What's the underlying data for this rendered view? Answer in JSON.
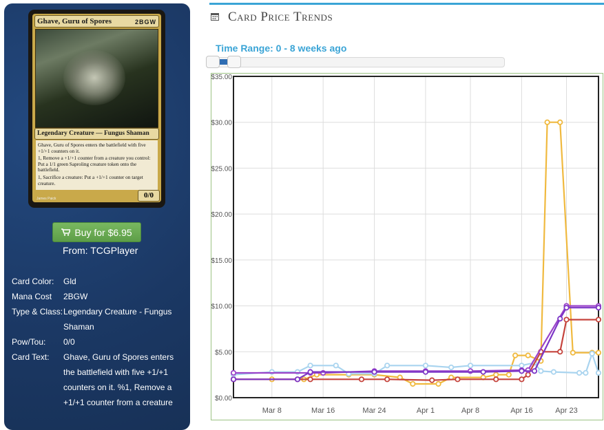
{
  "card": {
    "name": "Ghave, Guru of Spores",
    "cost": "2BGW",
    "type_line": "Legendary Creature — Fungus Shaman",
    "text_1": "Ghave, Guru of Spores enters the battlefield with five +1/+1 counters on it.",
    "text_2": "1, Remove a +1/+1 counter from a creature you control: Put a 1/1 green Saproling creature token onto the battlefield.",
    "text_3": "1, Sacrifice a creature: Put a +1/+1 counter on target creature.",
    "pt": "0/0",
    "artist": "James Paick"
  },
  "buy": {
    "label": "Buy for $6.95",
    "from": "From: TCGPlayer"
  },
  "attributes": [
    {
      "key": "Card Color:",
      "value": "Gld"
    },
    {
      "key": "Mana Cost",
      "value": "2BGW"
    },
    {
      "key": "Type & Class:",
      "value": "Legendary Creature - Fungus Shaman"
    },
    {
      "key": "Pow/Tou:",
      "value": "0/0"
    },
    {
      "key": "Card Text:",
      "value": "Ghave, Guru of Spores enters the battlefield with five +1/+1 counters on it. %1, Remove a +1/+1 counter from a creature"
    }
  ],
  "section_title": "Card Price Trends",
  "time_range": "Time Range: 0 - 8 weeks ago",
  "slider": {
    "min_weeks": 0,
    "max_weeks": 8
  },
  "chart_data": {
    "type": "line",
    "ylim": [
      0,
      35
    ],
    "yticks": [
      "$0.00",
      "$5.00",
      "$10.00",
      "$15.00",
      "$20.00",
      "$25.00",
      "$30.00",
      "$35.00"
    ],
    "xticks": [
      "Mar 8",
      "Mar 16",
      "Mar 24",
      "Apr 1",
      "Apr 8",
      "Apr 16",
      "Apr 23"
    ],
    "x_range": [
      "2012-03-02",
      "2012-04-28"
    ],
    "series": [
      {
        "color": "#f0b93e",
        "values": [
          [
            "2012-03-02",
            2.0
          ],
          [
            "2012-03-08",
            2.0
          ],
          [
            "2012-03-13",
            2.0
          ],
          [
            "2012-03-15",
            2.5
          ],
          [
            "2012-03-20",
            2.5
          ],
          [
            "2012-03-24",
            2.5
          ],
          [
            "2012-03-28",
            2.2
          ],
          [
            "2012-03-30",
            1.5
          ],
          [
            "2012-04-03",
            1.5
          ],
          [
            "2012-04-05",
            2.2
          ],
          [
            "2012-04-10",
            2.2
          ],
          [
            "2012-04-12",
            2.5
          ],
          [
            "2012-04-14",
            2.5
          ],
          [
            "2012-04-15",
            4.6
          ],
          [
            "2012-04-17",
            4.6
          ],
          [
            "2012-04-19",
            4.0
          ],
          [
            "2012-04-20",
            30.0
          ],
          [
            "2012-04-22",
            30.0
          ],
          [
            "2012-04-24",
            4.9
          ],
          [
            "2012-04-27",
            4.9
          ],
          [
            "2012-04-28",
            4.9
          ]
        ]
      },
      {
        "color": "#a9d4ef",
        "values": [
          [
            "2012-03-02",
            2.5
          ],
          [
            "2012-03-08",
            2.8
          ],
          [
            "2012-03-12",
            2.8
          ],
          [
            "2012-03-14",
            3.5
          ],
          [
            "2012-03-18",
            3.5
          ],
          [
            "2012-03-20",
            2.6
          ],
          [
            "2012-03-24",
            2.6
          ],
          [
            "2012-03-26",
            3.5
          ],
          [
            "2012-04-01",
            3.5
          ],
          [
            "2012-04-05",
            3.3
          ],
          [
            "2012-04-08",
            3.5
          ],
          [
            "2012-04-16",
            3.5
          ],
          [
            "2012-04-18",
            3.8
          ],
          [
            "2012-04-19",
            2.9
          ],
          [
            "2012-04-21",
            2.8
          ],
          [
            "2012-04-25",
            2.7
          ],
          [
            "2012-04-26",
            2.7
          ],
          [
            "2012-04-27",
            4.8
          ],
          [
            "2012-04-28",
            2.7
          ]
        ]
      },
      {
        "color": "#c5433c",
        "values": [
          [
            "2012-03-02",
            2.0
          ],
          [
            "2012-03-12",
            2.0
          ],
          [
            "2012-03-14",
            2.0
          ],
          [
            "2012-03-22",
            2.0
          ],
          [
            "2012-03-26",
            2.0
          ],
          [
            "2012-04-02",
            1.9
          ],
          [
            "2012-04-06",
            2.0
          ],
          [
            "2012-04-12",
            2.0
          ],
          [
            "2012-04-16",
            2.0
          ],
          [
            "2012-04-17",
            2.5
          ],
          [
            "2012-04-19",
            5.0
          ],
          [
            "2012-04-22",
            5.0
          ],
          [
            "2012-04-23",
            8.5
          ],
          [
            "2012-04-28",
            8.5
          ]
        ]
      },
      {
        "color": "#9a43c9",
        "values": [
          [
            "2012-03-02",
            2.7
          ],
          [
            "2012-03-14",
            2.7
          ],
          [
            "2012-03-16",
            2.7
          ],
          [
            "2012-03-24",
            2.9
          ],
          [
            "2012-04-01",
            2.9
          ],
          [
            "2012-04-08",
            2.9
          ],
          [
            "2012-04-16",
            3.0
          ],
          [
            "2012-04-17",
            3.0
          ],
          [
            "2012-04-23",
            10.0
          ],
          [
            "2012-04-28",
            10.0
          ]
        ]
      },
      {
        "color": "#7c35c6",
        "values": [
          [
            "2012-03-02",
            2.0
          ],
          [
            "2012-03-12",
            2.0
          ],
          [
            "2012-03-14",
            2.8
          ],
          [
            "2012-03-24",
            2.8
          ],
          [
            "2012-04-01",
            2.8
          ],
          [
            "2012-04-10",
            2.8
          ],
          [
            "2012-04-16",
            2.9
          ],
          [
            "2012-04-18",
            2.9
          ],
          [
            "2012-04-22",
            8.6
          ],
          [
            "2012-04-23",
            9.8
          ],
          [
            "2012-04-28",
            9.8
          ]
        ]
      }
    ]
  }
}
